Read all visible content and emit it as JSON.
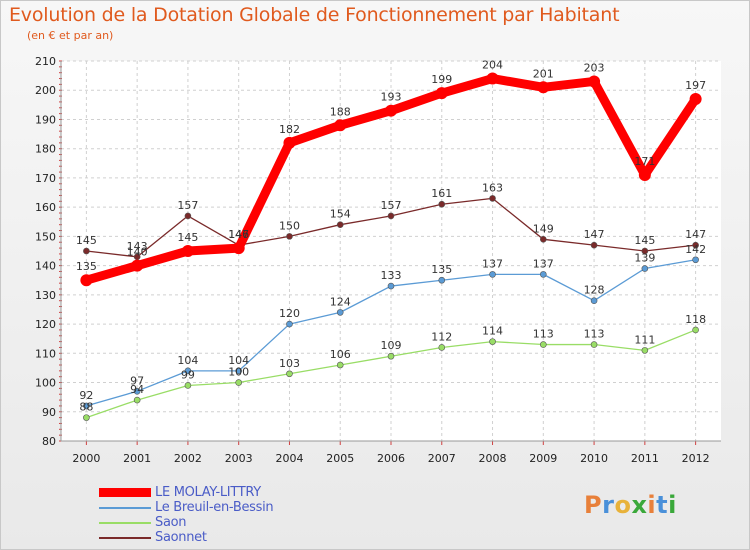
{
  "header": {
    "title": "Evolution de la Dotation Globale de Fonctionnement par Habitant",
    "subtitle": "(en € et par an)"
  },
  "logo": {
    "text": "Proxiti",
    "colors": [
      "#e8803a",
      "#4a90d9",
      "#e8b23a",
      "#3aa83a",
      "#e8803a",
      "#4a90d9",
      "#3aa83a"
    ]
  },
  "chart_data": {
    "type": "line",
    "x": [
      "2000",
      "2001",
      "2002",
      "2003",
      "2004",
      "2005",
      "2006",
      "2007",
      "2008",
      "2009",
      "2010",
      "2011",
      "2012"
    ],
    "ylim": [
      80,
      210
    ],
    "yticks": [
      80,
      90,
      100,
      110,
      120,
      130,
      140,
      150,
      160,
      170,
      180,
      190,
      200,
      210
    ],
    "grid": true,
    "legend_position": "bottom-left",
    "series": [
      {
        "name": "LE MOLAY-LITTRY",
        "color": "#ff0000",
        "values": [
          135,
          140,
          145,
          146,
          182,
          188,
          193,
          199,
          204,
          201,
          203,
          171,
          197
        ]
      },
      {
        "name": "Le Breuil-en-Bessin",
        "color": "#5b9bd5",
        "values": [
          92,
          97,
          104,
          104,
          120,
          124,
          133,
          135,
          137,
          137,
          128,
          139,
          142
        ]
      },
      {
        "name": "Saon",
        "color": "#99dd66",
        "values": [
          88,
          94,
          99,
          100,
          103,
          106,
          109,
          112,
          114,
          113,
          113,
          111,
          118
        ]
      },
      {
        "name": "Saonnet",
        "color": "#7a2a2a",
        "values": [
          145,
          143,
          157,
          147,
          150,
          154,
          157,
          161,
          163,
          149,
          147,
          145,
          147
        ]
      }
    ]
  }
}
